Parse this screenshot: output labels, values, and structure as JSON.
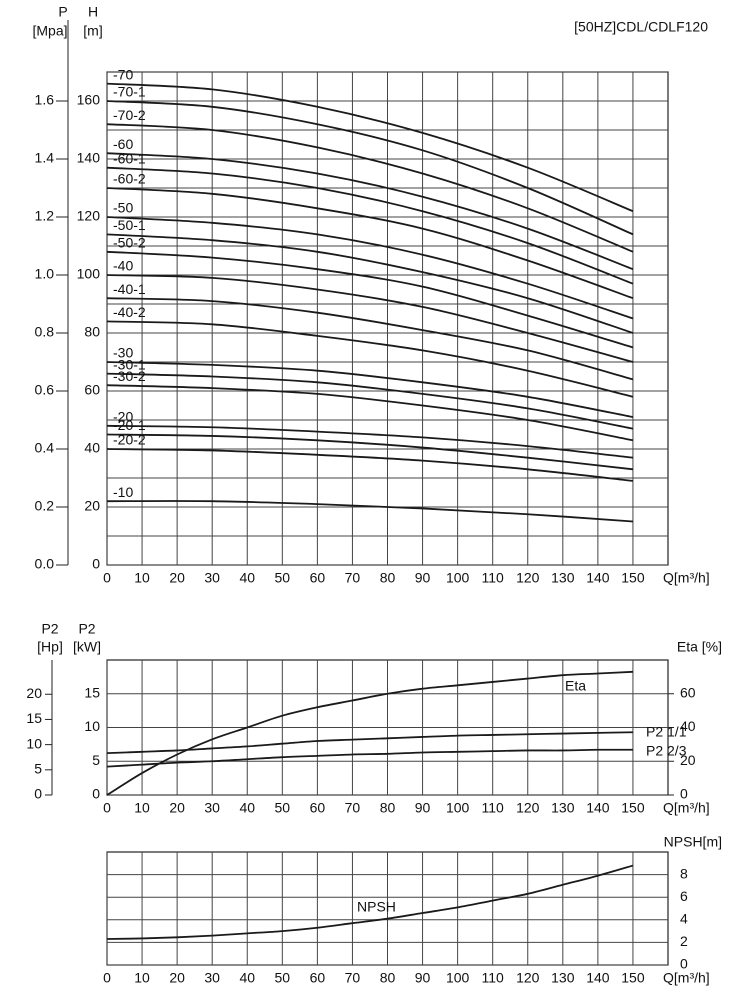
{
  "chart_data": [
    {
      "type": "line",
      "title": "[50HZ]CDL/CDLF120",
      "xlabel": "Q[m³/h]",
      "ylabel": "H",
      "ylabel_unit": "[m]",
      "y2label": "P",
      "y2label_unit": "[Mpa]",
      "x": [
        0,
        30,
        60,
        90,
        120,
        150
      ],
      "xlim": [
        0,
        160
      ],
      "xticks": [
        0,
        10,
        20,
        30,
        40,
        50,
        60,
        70,
        80,
        90,
        100,
        110,
        120,
        130,
        140,
        150
      ],
      "ylim": [
        0,
        170
      ],
      "yticks": [
        0,
        20,
        40,
        60,
        80,
        100,
        120,
        140,
        160
      ],
      "minor_yticks": [
        10,
        30,
        50,
        70,
        90,
        110,
        130,
        150,
        170
      ],
      "y2lim": [
        0,
        1.7
      ],
      "y2ticks": [
        {
          "value": 0,
          "label": "0.0"
        },
        0.2,
        0.4,
        0.6,
        0.8,
        {
          "value": 1,
          "label": "1.0"
        },
        1.2,
        1.4,
        1.6
      ],
      "grid": true,
      "series": [
        {
          "name": "-70",
          "color": "#1a1a1a",
          "values": [
            166,
            164,
            158,
            149,
            137,
            122
          ]
        },
        {
          "name": "-70-1",
          "color": "#1a1a1a",
          "values": [
            160,
            158,
            152,
            143,
            130,
            114
          ]
        },
        {
          "name": "-70-2",
          "color": "#1a1a1a",
          "values": [
            152,
            150,
            144,
            135,
            123,
            108
          ]
        },
        {
          "name": "-60",
          "color": "#1a1a1a",
          "values": [
            142,
            140,
            135,
            127,
            116,
            102
          ]
        },
        {
          "name": "-60-1",
          "color": "#1a1a1a",
          "values": [
            137,
            135,
            130,
            122,
            111,
            97
          ]
        },
        {
          "name": "-60-2",
          "color": "#1a1a1a",
          "values": [
            130,
            128,
            123,
            116,
            105,
            92
          ]
        },
        {
          "name": "-50",
          "color": "#1a1a1a",
          "values": [
            120,
            118,
            114,
            107,
            97,
            85
          ]
        },
        {
          "name": "-50-1",
          "color": "#1a1a1a",
          "values": [
            114,
            112,
            108,
            101,
            92,
            80
          ]
        },
        {
          "name": "-50-2",
          "color": "#1a1a1a",
          "values": [
            108,
            106,
            102,
            96,
            86,
            75
          ]
        },
        {
          "name": "-40",
          "color": "#1a1a1a",
          "values": [
            100,
            99,
            95,
            89,
            80,
            70
          ]
        },
        {
          "name": "-40-1",
          "color": "#1a1a1a",
          "values": [
            92,
            91,
            87,
            81,
            74,
            64
          ]
        },
        {
          "name": "-40-2",
          "color": "#1a1a1a",
          "values": [
            84,
            83,
            79,
            74,
            67,
            58
          ]
        },
        {
          "name": "-30",
          "color": "#1a1a1a",
          "values": [
            70,
            69,
            67,
            63,
            58,
            51
          ]
        },
        {
          "name": "-30-1",
          "color": "#1a1a1a",
          "values": [
            66,
            65,
            63,
            59,
            54,
            47
          ]
        },
        {
          "name": "-30-2",
          "color": "#1a1a1a",
          "values": [
            62,
            61,
            59,
            55,
            50,
            43
          ]
        },
        {
          "name": "-20",
          "color": "#1a1a1a",
          "values": [
            48,
            47.5,
            46,
            44,
            41,
            37
          ]
        },
        {
          "name": "-20-1",
          "color": "#1a1a1a",
          "values": [
            45,
            44.5,
            43,
            40.5,
            37,
            33
          ]
        },
        {
          "name": "-20-2",
          "color": "#1a1a1a",
          "values": [
            40,
            39.5,
            38,
            36,
            33,
            29
          ]
        },
        {
          "name": "-10",
          "color": "#1a1a1a",
          "values": [
            22,
            22,
            21,
            19.5,
            17.5,
            15
          ]
        }
      ]
    },
    {
      "type": "line",
      "xlabel": "Q[m³/h]",
      "ylabel": "P2",
      "ylabel_unit": "[kW]",
      "hp_label": "P2",
      "hp_unit": "[Hp]",
      "hp_lim": [
        0,
        26.8
      ],
      "hp_ticks": [
        0,
        5,
        10,
        15,
        20
      ],
      "y2label": "Eta [%]",
      "x": [
        0,
        10,
        20,
        30,
        40,
        50,
        60,
        70,
        80,
        90,
        100,
        110,
        120,
        130,
        140,
        150
      ],
      "xlim": [
        0,
        160
      ],
      "xticks": [
        0,
        10,
        20,
        30,
        40,
        50,
        60,
        70,
        80,
        90,
        100,
        110,
        120,
        130,
        140,
        150
      ],
      "ylim": [
        0,
        20
      ],
      "yticks": [
        0,
        5,
        10,
        15
      ],
      "y2lim": [
        0,
        80
      ],
      "y2ticks": [
        0,
        20,
        40,
        60
      ],
      "grid": true,
      "series": [
        {
          "name": "Eta",
          "color": "#1a1a1a",
          "axis": "y2",
          "values": [
            0,
            13,
            24,
            33,
            40,
            47,
            52,
            56,
            60,
            63,
            65,
            67,
            69,
            71,
            72,
            73
          ]
        },
        {
          "name": "P2 1/1",
          "color": "#1a1a1a",
          "values": [
            6.2,
            6.4,
            6.6,
            6.9,
            7.2,
            7.6,
            8.0,
            8.2,
            8.4,
            8.6,
            8.8,
            8.9,
            9.0,
            9.1,
            9.2,
            9.3
          ]
        },
        {
          "name": "P2 2/3",
          "color": "#1a1a1a",
          "values": [
            4.2,
            4.5,
            4.8,
            5.0,
            5.3,
            5.6,
            5.8,
            6.0,
            6.1,
            6.3,
            6.4,
            6.5,
            6.6,
            6.6,
            6.7,
            6.7
          ]
        }
      ]
    },
    {
      "type": "line",
      "xlabel": "Q[m³/h]",
      "y2label": "NPSH[m]",
      "x": [
        0,
        10,
        20,
        30,
        40,
        50,
        60,
        70,
        80,
        90,
        100,
        110,
        120,
        130,
        140,
        150
      ],
      "xlim": [
        0,
        160
      ],
      "xticks": [
        0,
        10,
        20,
        30,
        40,
        50,
        60,
        70,
        80,
        90,
        100,
        110,
        120,
        130,
        140,
        150
      ],
      "y2lim": [
        0,
        10
      ],
      "y2ticks": [
        0,
        2,
        4,
        6,
        8
      ],
      "grid": true,
      "series": [
        {
          "name": "NPSH",
          "color": "#1a1a1a",
          "axis": "y2",
          "values": [
            2.3,
            2.35,
            2.45,
            2.6,
            2.8,
            3.0,
            3.3,
            3.7,
            4.1,
            4.6,
            5.1,
            5.7,
            6.3,
            7.1,
            7.9,
            8.8
          ]
        }
      ]
    }
  ]
}
